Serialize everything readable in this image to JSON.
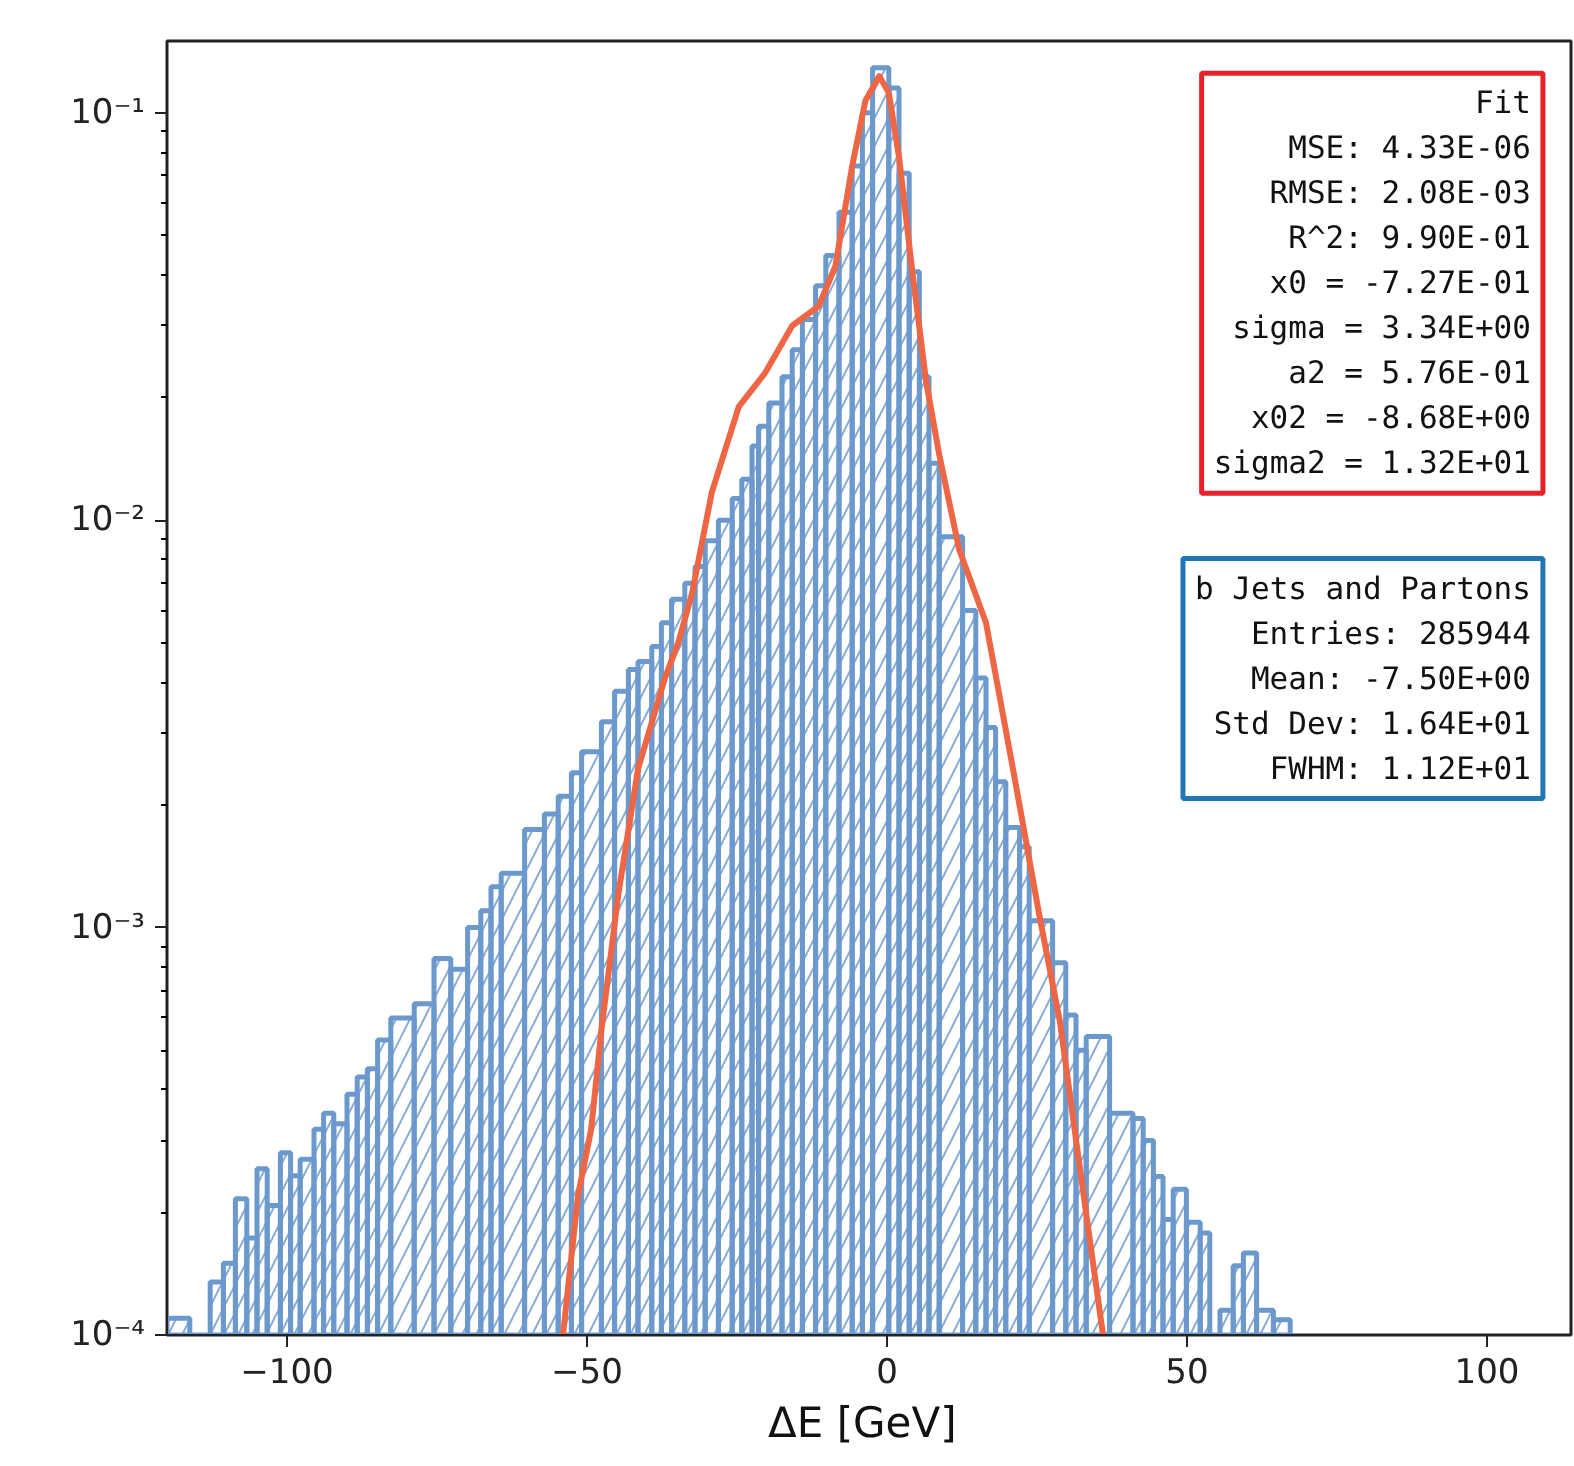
{
  "chart_data": {
    "type": "histogram",
    "xlabel": "ΔE  [GeV]",
    "xlim": [
      -120,
      114
    ],
    "ylim": [
      0.0001,
      0.15
    ],
    "log": "y",
    "grid": false,
    "xticks": [
      {
        "value": -100,
        "label": "−100"
      },
      {
        "value": -50,
        "label": "−50"
      },
      0,
      50,
      100
    ],
    "yticks": [
      {
        "value": 0.0001,
        "label": "10⁻⁴"
      },
      {
        "value": 0.001,
        "label": "10⁻³"
      },
      {
        "value": 0.01,
        "label": "10⁻²"
      },
      {
        "value": 0.1,
        "label": "10⁻¹"
      }
    ],
    "annotations": [
      "Fit\nMSE: 4.33E-06\nRMSE: 2.08E-03\nR^2: 9.90E-01\nx0 = -7.27E-01\nsigma = 3.34E+00\na2 = 5.76E-01\nx02 = -8.68E+00\nsigma2 = 1.32E+01",
      "b Jets and Partons\nEntries: 285944\nMean: -7.50E+00\nStd Dev: 1.64E+01\nFWHM: 1.12E+01"
    ],
    "series": [
      {
        "type": "histogram",
        "color": "#6c99cd",
        "bins": [
          -120,
          -116.2,
          -112.8,
          -110.6,
          -108.6,
          -106.7,
          -105.0,
          -103.3,
          -101.1,
          -99.4,
          -97.8,
          -95.5,
          -93.9,
          -92.2,
          -90.0,
          -88.3,
          -86.6,
          -84.9,
          -82.7,
          -78.8,
          -75.5,
          -72.7,
          -69.9,
          -67.7,
          -66.0,
          -64.3,
          -60.4,
          -57.1,
          -54.8,
          -52.6,
          -50.9,
          -47.6,
          -45.4,
          -43.1,
          -41.5,
          -39.2,
          -37.6,
          -35.9,
          -33.7,
          -32.0,
          -30.3,
          -28.1,
          -25.8,
          -24.2,
          -22.5,
          -21.4,
          -19.7,
          -17.5,
          -15.8,
          -14.1,
          -11.9,
          -10.2,
          -8.0,
          -5.8,
          -4.1,
          -2.4,
          0.3,
          2.0,
          3.7,
          5.4,
          7.0,
          8.7,
          12.6,
          14.8,
          16.5,
          18.1,
          19.8,
          22.1,
          23.7,
          27.6,
          29.8,
          31.5,
          33.2,
          37.1,
          41.0,
          42.7,
          44.4,
          46.0,
          47.7,
          49.9,
          52.2,
          53.8,
          55.5,
          57.7,
          59.4,
          61.6,
          64.4,
          67.2
        ],
        "values": [
          0.00011,
          0.0001,
          0.000135,
          0.00015,
          0.000216,
          0.000173,
          0.000256,
          0.000208,
          0.00028,
          0.000246,
          0.00027,
          0.00032,
          0.00035,
          0.00033,
          0.00039,
          0.00043,
          0.00045,
          0.00053,
          0.0006,
          0.00065,
          0.00084,
          0.00079,
          0.001,
          0.0011,
          0.00126,
          0.00136,
          0.00174,
          0.0019,
          0.0021,
          0.0024,
          0.0027,
          0.0032,
          0.0038,
          0.0043,
          0.0045,
          0.0049,
          0.0056,
          0.0064,
          0.007,
          0.0077,
          0.0089,
          0.01,
          0.0113,
          0.0126,
          0.0152,
          0.017,
          0.0194,
          0.0225,
          0.0262,
          0.0311,
          0.0376,
          0.0446,
          0.057,
          0.074,
          0.1,
          0.129,
          0.115,
          0.071,
          0.0407,
          0.0225,
          0.0138,
          0.0091,
          0.006,
          0.0041,
          0.0031,
          0.00228,
          0.00176,
          0.00158,
          0.00104,
          0.00082,
          0.00061,
          0.0005,
          0.00054,
          0.00035,
          0.00034,
          0.0003,
          0.000245,
          0.000192,
          0.000228,
          0.000189,
          0.000178,
          0.0001,
          0.000115,
          0.000148,
          0.000159,
          0.000115,
          0.000109
        ]
      },
      {
        "type": "line",
        "color": "#ef6645",
        "line_style": "solid",
        "x": [
          -54.0,
          -51.5,
          -49.3,
          -47.6,
          -44.8,
          -41.5,
          -37.0,
          -34.8,
          -32.5,
          -29.2,
          -24.7,
          -20.3,
          -15.8,
          -11.4,
          -8.6,
          -5.8,
          -3.6,
          -1.3,
          0.3,
          2.0,
          4.2,
          6.5,
          8.7,
          12.0,
          16.5,
          21.0,
          25.4,
          28.8,
          32.1,
          36.0
        ],
        "values": [
          0.0001,
          0.00022,
          0.00032,
          0.00056,
          0.0012,
          0.00245,
          0.0041,
          0.005,
          0.0066,
          0.0117,
          0.019,
          0.023,
          0.03,
          0.0335,
          0.042,
          0.074,
          0.107,
          0.123,
          0.112,
          0.078,
          0.041,
          0.022,
          0.0145,
          0.0085,
          0.0056,
          0.00245,
          0.00107,
          0.00059,
          0.00026,
          0.0001
        ]
      }
    ]
  }
}
